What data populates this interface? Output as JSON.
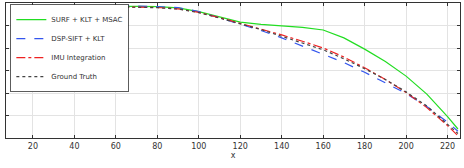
{
  "chart_data": {
    "type": "line",
    "x_label": "x",
    "x": [
      10,
      20,
      30,
      40,
      50,
      60,
      70,
      80,
      90,
      100,
      110,
      120,
      130,
      140,
      150,
      160,
      170,
      180,
      190,
      200,
      210,
      220,
      225
    ],
    "series": [
      {
        "name": "SURF + KLT + MSAC",
        "color": "#22dd22",
        "line_style": "solid",
        "values": [
          5.82,
          5.83,
          5.84,
          5.85,
          5.85,
          5.85,
          5.85,
          5.84,
          5.78,
          5.62,
          5.38,
          5.15,
          5.05,
          4.98,
          4.92,
          4.8,
          4.45,
          3.95,
          3.4,
          2.75,
          1.95,
          0.95,
          0.4
        ]
      },
      {
        "name": "DSP-SIFT + KLT",
        "color": "#3355ee",
        "line_style": "dashed",
        "values": [
          5.85,
          5.86,
          5.87,
          5.88,
          5.88,
          5.88,
          5.87,
          5.85,
          5.8,
          5.62,
          5.35,
          5.08,
          4.78,
          4.45,
          4.1,
          3.72,
          3.35,
          2.92,
          2.45,
          1.98,
          1.4,
          0.7,
          0.3
        ]
      },
      {
        "name": "IMU Integration",
        "color": "#ee2222",
        "line_style": "dashdot",
        "values": [
          5.8,
          5.81,
          5.82,
          5.82,
          5.82,
          5.82,
          5.82,
          5.8,
          5.74,
          5.58,
          5.35,
          5.1,
          4.85,
          4.58,
          4.3,
          4.0,
          3.6,
          3.12,
          2.6,
          2.02,
          1.35,
          0.55,
          0.1
        ]
      },
      {
        "name": "Ground Truth",
        "color": "#444444",
        "line_style": "dotted",
        "values": [
          5.8,
          5.81,
          5.81,
          5.82,
          5.82,
          5.82,
          5.81,
          5.79,
          5.73,
          5.57,
          5.33,
          5.08,
          4.82,
          4.52,
          4.22,
          3.92,
          3.52,
          3.08,
          2.6,
          2.05,
          1.42,
          0.62,
          0.2
        ]
      }
    ],
    "xlim": [
      7,
      226
    ],
    "xticks": [
      20,
      40,
      60,
      80,
      100,
      120,
      140,
      160,
      180,
      200,
      220
    ],
    "ylim": [
      0,
      6
    ],
    "yticks": [
      0,
      1,
      2,
      3,
      4,
      5,
      6
    ],
    "grid": true,
    "legend": "top-left",
    "tick_labels": "x"
  }
}
